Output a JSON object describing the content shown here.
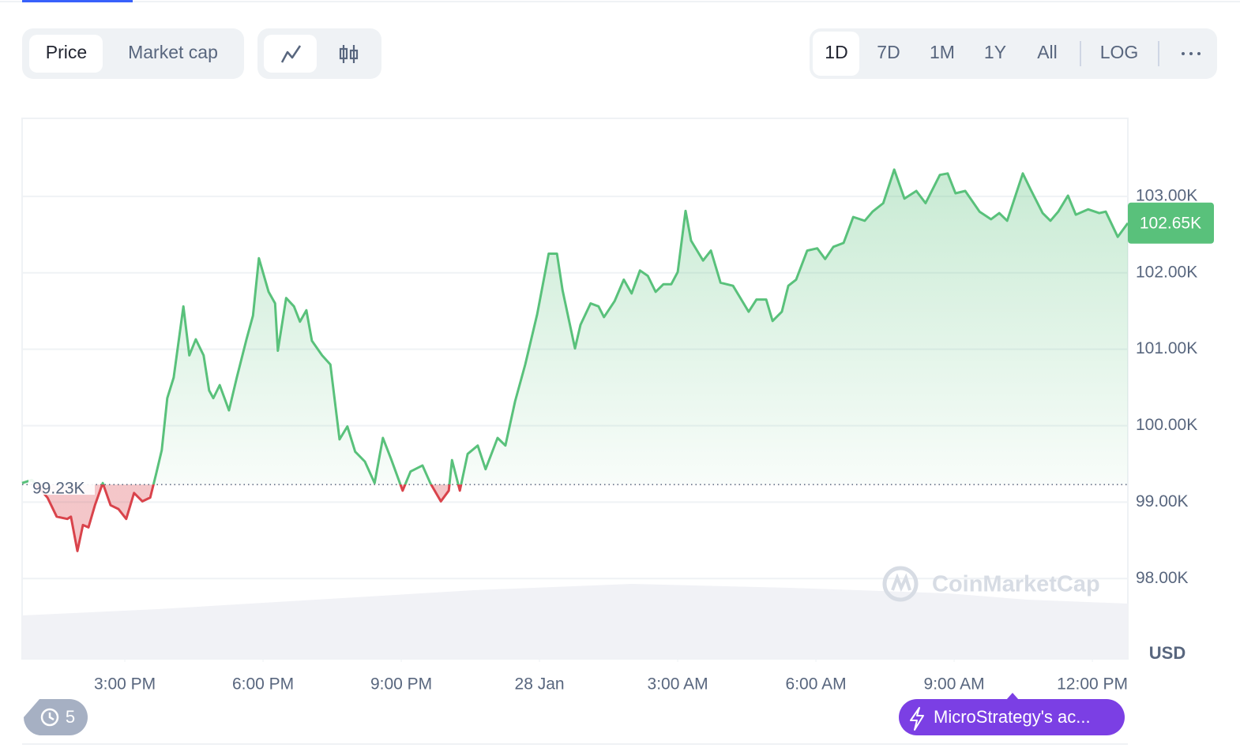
{
  "toolbar": {
    "tabs": [
      "Price",
      "Market cap"
    ],
    "ranges": [
      "1D",
      "7D",
      "1M",
      "1Y",
      "All"
    ],
    "log": "LOG"
  },
  "chart_data": {
    "type": "line",
    "x": [
      12.77,
      12.98,
      13.32,
      13.52,
      13.75,
      13.83,
      13.97,
      14.09,
      14.21,
      14.35,
      14.52,
      14.69,
      14.86,
      15.03,
      15.2,
      15.38,
      15.55,
      15.68,
      15.8,
      15.92,
      16.06,
      16.27,
      16.4,
      16.54,
      16.71,
      16.83,
      16.92,
      17.06,
      17.26,
      17.43,
      17.64,
      17.78,
      17.91,
      18.12,
      18.26,
      18.32,
      18.5,
      18.67,
      18.8,
      18.94,
      19.06,
      19.28,
      19.46,
      19.66,
      19.83,
      20.0,
      20.21,
      20.42,
      20.6,
      20.78,
      21.03,
      21.2,
      21.46,
      21.63,
      21.86,
      22.03,
      22.1,
      22.27,
      22.44,
      22.66,
      22.83,
      23.09,
      23.26,
      23.47,
      23.69,
      23.95,
      24.2,
      24.38,
      24.5,
      24.77,
      24.89,
      25.11,
      25.28,
      25.4,
      25.63,
      25.83,
      26.0,
      26.18,
      26.35,
      26.52,
      26.69,
      26.86,
      27.0,
      27.17,
      27.29,
      27.55,
      27.72,
      27.93,
      28.2,
      28.54,
      28.71,
      28.92,
      29.06,
      29.26,
      29.4,
      29.57,
      29.81,
      30.03,
      30.2,
      30.38,
      30.6,
      30.81,
      31.06,
      31.23,
      31.46,
      31.7,
      31.92,
      32.18,
      32.38,
      32.69,
      32.86,
      33.03,
      33.24,
      33.55,
      33.8,
      33.98,
      34.15,
      34.49,
      34.66,
      34.92,
      35.09,
      35.26,
      35.47,
      35.64,
      35.91,
      36.15,
      36.29,
      36.55,
      36.77
    ],
    "values": [
      99250,
      99290,
      99060,
      98810,
      98780,
      98810,
      98360,
      98700,
      98670,
      98960,
      99250,
      98960,
      98910,
      98780,
      99120,
      99010,
      99060,
      99370,
      99680,
      100360,
      100630,
      101560,
      100920,
      101130,
      100920,
      100460,
      100360,
      100530,
      100200,
      100630,
      101130,
      101440,
      102190,
      101750,
      101600,
      100980,
      101670,
      101560,
      101360,
      101510,
      101110,
      100920,
      100800,
      99820,
      99990,
      99660,
      99530,
      99250,
      99840,
      99560,
      99150,
      99400,
      99480,
      99250,
      99010,
      99150,
      99550,
      99150,
      99630,
      99740,
      99430,
      99840,
      99740,
      100320,
      100800,
      101460,
      102250,
      102250,
      101770,
      101010,
      101320,
      101600,
      101560,
      101420,
      101630,
      101910,
      101730,
      102030,
      101960,
      101750,
      101850,
      101850,
      102010,
      102810,
      102420,
      102160,
      102290,
      101870,
      101830,
      101490,
      101650,
      101650,
      101370,
      101490,
      101830,
      101910,
      102290,
      102320,
      102180,
      102340,
      102390,
      102730,
      102680,
      102800,
      102910,
      103350,
      102970,
      103070,
      102910,
      103280,
      103300,
      103040,
      103070,
      102800,
      102700,
      102780,
      102680,
      103300,
      103090,
      102780,
      102680,
      102800,
      103010,
      102760,
      102830,
      102780,
      102800,
      102470,
      102650
    ],
    "color": "#59c17b",
    "down_color": "#d9434b",
    "baseline": 99230,
    "baseline_label": "99.23K",
    "current_value": 102650,
    "current_label": "102.65K",
    "xlim": [
      12.77,
      36.77
    ],
    "xticks": [
      {
        "value": 15,
        "label": "3:00 PM"
      },
      {
        "value": 18,
        "label": "6:00 PM"
      },
      {
        "value": 21,
        "label": "9:00 PM"
      },
      {
        "value": 24,
        "label": "28 Jan"
      },
      {
        "value": 27,
        "label": "3:00 AM"
      },
      {
        "value": 30,
        "label": "6:00 AM"
      },
      {
        "value": 33,
        "label": "9:00 AM"
      },
      {
        "value": 36,
        "label": "12:00 PM"
      }
    ],
    "ylim": [
      96950,
      104020
    ],
    "yticks": [
      {
        "value": 98000,
        "label": "98.00K"
      },
      {
        "value": 99000,
        "label": "99.00K"
      },
      {
        "value": 100000,
        "label": "100.00K"
      },
      {
        "value": 101000,
        "label": "101.00K"
      },
      {
        "value": 102000,
        "label": "102.00K"
      },
      {
        "value": 103000,
        "label": "103.00K"
      }
    ],
    "y_label": "USD",
    "grid": true
  },
  "watermark": "CoinMarketCap",
  "history_count": "5",
  "event": "MicroStrategy's ac..."
}
